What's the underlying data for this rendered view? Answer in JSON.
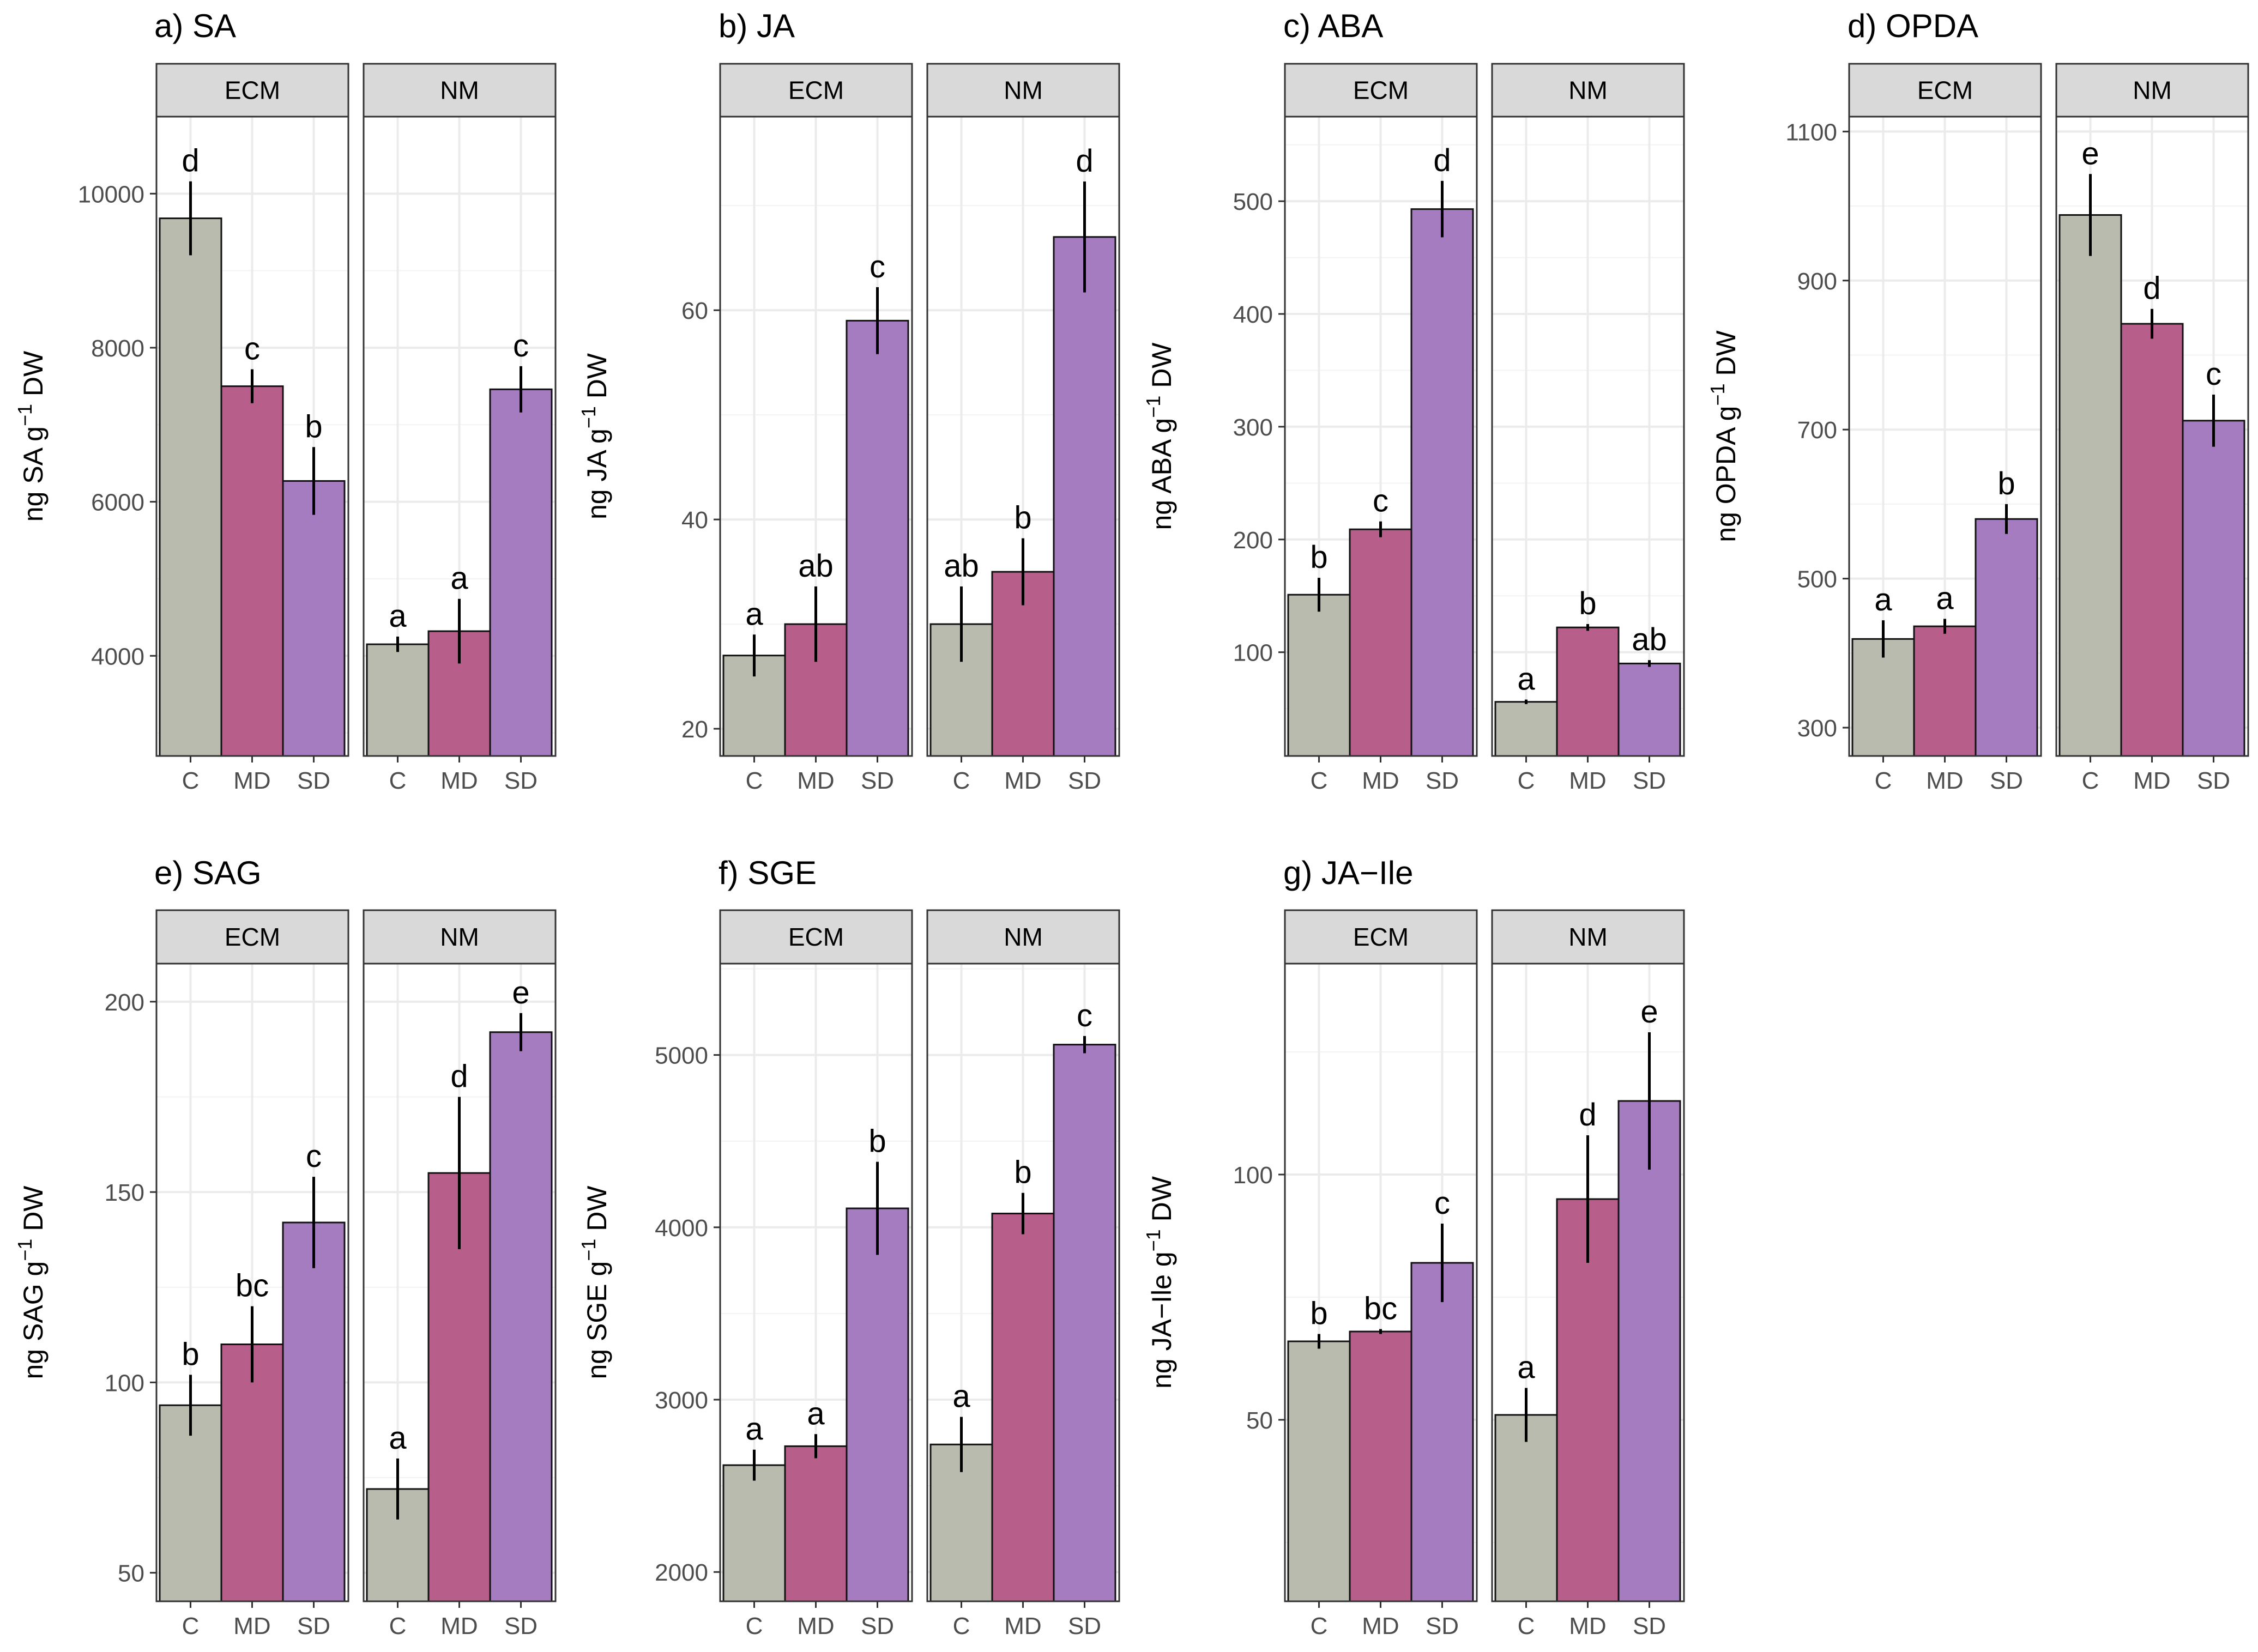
{
  "figure": {
    "facets": [
      "ECM",
      "NM"
    ],
    "categories": [
      "C",
      "MD",
      "SD"
    ],
    "colors": {
      "C": "#b9bbaf",
      "MD": "#b85e8a",
      "SD": "#a57cc0"
    },
    "strip_fill": "#d9d9d9",
    "grid_color": "#ebebeb"
  },
  "chart_data": [
    {
      "type": "bar",
      "title": "a) SA",
      "ylabel_prefix": "ng SA g",
      "ylabel_exp": "−1",
      "ylabel_suffix": " DW",
      "ylim": [
        2700,
        11000
      ],
      "yticks": [
        4000,
        6000,
        8000,
        10000
      ],
      "ytick_labels": [
        "4000",
        "6000",
        "8000",
        "10000"
      ],
      "series": [
        {
          "name": "ECM",
          "values": [
            9680,
            7500,
            6270
          ],
          "errors": [
            480,
            220,
            440
          ],
          "letters": [
            "d",
            "c",
            "b"
          ]
        },
        {
          "name": "NM",
          "values": [
            4150,
            4320,
            7460
          ],
          "errors": [
            100,
            420,
            300
          ],
          "letters": [
            "a",
            "a",
            "c"
          ]
        }
      ]
    },
    {
      "type": "bar",
      "title": "b) JA",
      "ylabel_prefix": "ng JA g",
      "ylabel_exp": "−1",
      "ylabel_suffix": " DW",
      "ylim": [
        17.4,
        78.5
      ],
      "yticks": [
        20,
        40,
        60
      ],
      "ytick_labels": [
        "20",
        "40",
        "60"
      ],
      "series": [
        {
          "name": "ECM",
          "values": [
            27,
            30,
            59
          ],
          "errors": [
            2,
            3.6,
            3.2
          ],
          "letters": [
            "a",
            "ab",
            "c"
          ]
        },
        {
          "name": "NM",
          "values": [
            30,
            35,
            67
          ],
          "errors": [
            3.6,
            3.2,
            5.3
          ],
          "letters": [
            "ab",
            "b",
            "d"
          ]
        }
      ]
    },
    {
      "type": "bar",
      "title": "c) ABA",
      "ylabel_prefix": "ng ABA g",
      "ylabel_exp": "−1",
      "ylabel_suffix": " DW",
      "ylim": [
        8,
        575
      ],
      "yticks": [
        100,
        200,
        300,
        400,
        500
      ],
      "ytick_labels": [
        "100",
        "200",
        "300",
        "400",
        "500"
      ],
      "series": [
        {
          "name": "ECM",
          "values": [
            151,
            209,
            493
          ],
          "errors": [
            15,
            7,
            25
          ],
          "letters": [
            "b",
            "c",
            "d"
          ]
        },
        {
          "name": "NM",
          "values": [
            56,
            122,
            90
          ],
          "errors": [
            2,
            3,
            3
          ],
          "letters": [
            "a",
            "b",
            "ab"
          ]
        }
      ]
    },
    {
      "type": "bar",
      "title": "d) OPDA",
      "ylabel_prefix": "ng OPDA g",
      "ylabel_exp": "−1",
      "ylabel_suffix": " DW",
      "ylim": [
        262,
        1120
      ],
      "yticks": [
        300,
        500,
        700,
        900,
        1100
      ],
      "ytick_labels": [
        "300",
        "500",
        "700",
        "900",
        "1100"
      ],
      "series": [
        {
          "name": "ECM",
          "values": [
            419,
            436,
            580
          ],
          "errors": [
            25,
            10,
            20
          ],
          "letters": [
            "a",
            "a",
            "b"
          ]
        },
        {
          "name": "NM",
          "values": [
            988,
            842,
            712
          ],
          "errors": [
            55,
            20,
            35
          ],
          "letters": [
            "e",
            "d",
            "c"
          ]
        }
      ]
    },
    {
      "type": "bar",
      "title": "e) SAG",
      "ylabel_prefix": "ng SAG g",
      "ylabel_exp": "−1",
      "ylabel_suffix": " DW",
      "ylim": [
        42.5,
        210
      ],
      "yticks": [
        50,
        100,
        150,
        200
      ],
      "ytick_labels": [
        "50",
        "100",
        "150",
        "200"
      ],
      "series": [
        {
          "name": "ECM",
          "values": [
            94,
            110,
            142
          ],
          "errors": [
            8,
            10,
            12
          ],
          "letters": [
            "b",
            "bc",
            "c"
          ]
        },
        {
          "name": "NM",
          "values": [
            72,
            155,
            192
          ],
          "errors": [
            8,
            20,
            5
          ],
          "letters": [
            "a",
            "d",
            "e"
          ]
        }
      ]
    },
    {
      "type": "bar",
      "title": "f) SGE",
      "ylabel_prefix": "ng SGE g",
      "ylabel_exp": "−1",
      "ylabel_suffix": " DW",
      "ylim": [
        1830,
        5530
      ],
      "yticks": [
        2000,
        3000,
        4000,
        5000
      ],
      "ytick_labels": [
        "2000",
        "3000",
        "4000",
        "5000"
      ],
      "series": [
        {
          "name": "ECM",
          "values": [
            2620,
            2730,
            4110
          ],
          "errors": [
            90,
            70,
            270
          ],
          "letters": [
            "a",
            "a",
            "b"
          ]
        },
        {
          "name": "NM",
          "values": [
            2740,
            4080,
            5060
          ],
          "errors": [
            160,
            120,
            50
          ],
          "letters": [
            "a",
            "b",
            "c"
          ]
        }
      ]
    },
    {
      "type": "bar",
      "title": "g) JA−Ile",
      "ylabel_prefix": "ng JA−Ile g",
      "ylabel_exp": "−1",
      "ylabel_suffix": " DW",
      "ylim": [
        13,
        143
      ],
      "yticks": [
        50,
        100
      ],
      "ytick_labels": [
        "50",
        "100"
      ],
      "series": [
        {
          "name": "ECM",
          "values": [
            66,
            68,
            82
          ],
          "errors": [
            1.5,
            0.5,
            8
          ],
          "letters": [
            "b",
            "bc",
            "c"
          ]
        },
        {
          "name": "NM",
          "values": [
            51,
            95,
            115
          ],
          "errors": [
            5.5,
            13,
            14
          ],
          "letters": [
            "a",
            "d",
            "e"
          ]
        }
      ]
    }
  ]
}
